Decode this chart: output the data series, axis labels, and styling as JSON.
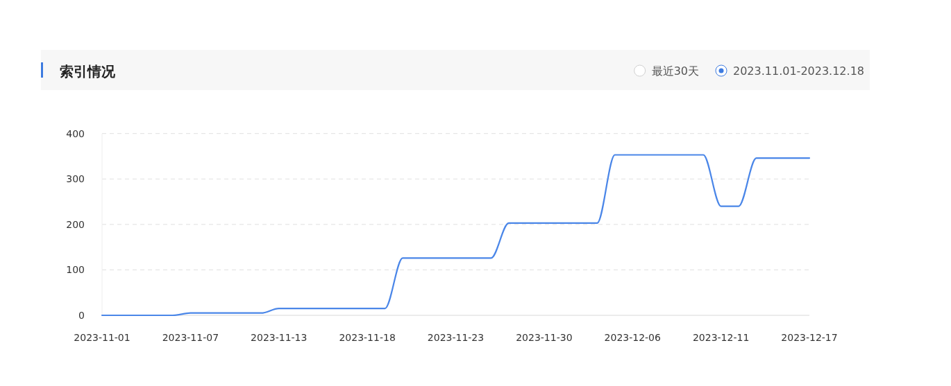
{
  "chart_data": {
    "type": "line",
    "title": "索引情况",
    "annotations": [
      "最近30天",
      "2023.11.01-2023.12.18"
    ],
    "categories": [
      "2023-11-01",
      null,
      null,
      null,
      null,
      "2023-11-07",
      null,
      null,
      null,
      null,
      "2023-11-13",
      null,
      null,
      null,
      null,
      "2023-11-18",
      null,
      null,
      null,
      null,
      "2023-11-23",
      null,
      null,
      null,
      null,
      "2023-11-30",
      null,
      null,
      null,
      null,
      "2023-12-06",
      null,
      null,
      null,
      null,
      "2023-12-11",
      null,
      null,
      null,
      null,
      "2023-12-17"
    ],
    "series": [
      {
        "color": "#4a86e8",
        "values": [
          0,
          0,
          0,
          0,
          0,
          5,
          5,
          5,
          5,
          5,
          15,
          15,
          15,
          15,
          15,
          15,
          15,
          126,
          126,
          126,
          126,
          126,
          126,
          203,
          203,
          203,
          203,
          203,
          203,
          353,
          353,
          353,
          353,
          353,
          353,
          240,
          240,
          346,
          346,
          346,
          346
        ]
      }
    ],
    "ylim": [
      0,
      400
    ],
    "yticks": [
      0,
      100,
      200,
      300,
      400
    ],
    "grid": "y",
    "marker": "none",
    "line_style": "solid"
  }
}
